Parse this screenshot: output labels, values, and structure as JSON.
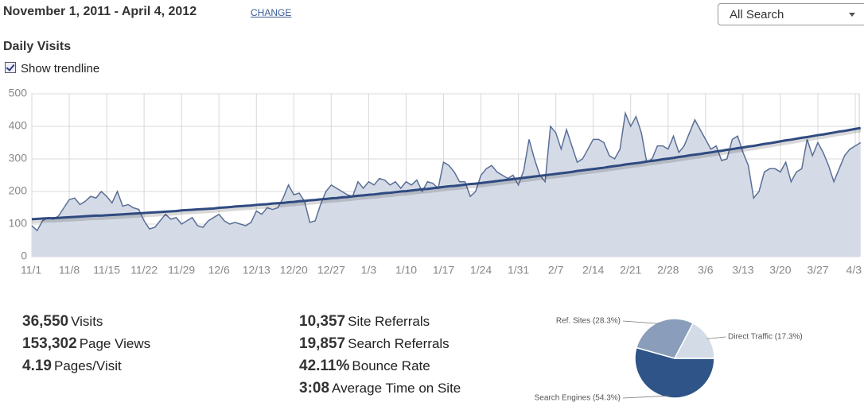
{
  "header": {
    "date_range": "November 1, 2011 - April 4, 2012",
    "change_link": "CHANGE",
    "dropdown": "All Search",
    "section_title": "Daily Visits",
    "trendline_toggle": "Show trendline"
  },
  "stats": {
    "left": [
      {
        "value": "36,550",
        "label": "Visits"
      },
      {
        "value": "153,302",
        "label": "Page Views"
      },
      {
        "value": "4.19",
        "label": "Pages/Visit"
      }
    ],
    "right": [
      {
        "value": "10,357",
        "label": "Site Referrals"
      },
      {
        "value": "19,857",
        "label": "Search Referrals"
      },
      {
        "value": "42.11%",
        "label": "Bounce Rate"
      },
      {
        "value": "3:08",
        "label": "Average Time on Site"
      }
    ]
  },
  "chart_data": [
    {
      "type": "area",
      "categories": [
        "11/1",
        null,
        null,
        null,
        null,
        null,
        null,
        "11/8",
        null,
        null,
        null,
        null,
        null,
        null,
        "11/15",
        null,
        null,
        null,
        null,
        null,
        null,
        "11/22",
        null,
        null,
        null,
        null,
        null,
        null,
        "11/29",
        null,
        null,
        null,
        null,
        null,
        null,
        "12/6",
        null,
        null,
        null,
        null,
        null,
        null,
        "12/13",
        null,
        null,
        null,
        null,
        null,
        null,
        "12/20",
        null,
        null,
        null,
        null,
        null,
        null,
        "12/27",
        null,
        null,
        null,
        null,
        null,
        null,
        "1/3",
        null,
        null,
        null,
        null,
        null,
        null,
        "1/10",
        null,
        null,
        null,
        null,
        null,
        null,
        "1/17",
        null,
        null,
        null,
        null,
        null,
        null,
        "1/24",
        null,
        null,
        null,
        null,
        null,
        null,
        "1/31",
        null,
        null,
        null,
        null,
        null,
        null,
        "2/7",
        null,
        null,
        null,
        null,
        null,
        null,
        "2/14",
        null,
        null,
        null,
        null,
        null,
        null,
        "2/21",
        null,
        null,
        null,
        null,
        null,
        null,
        "2/28",
        null,
        null,
        null,
        null,
        null,
        null,
        "3/6",
        null,
        null,
        null,
        null,
        null,
        null,
        "3/13",
        null,
        null,
        null,
        null,
        null,
        null,
        "3/20",
        null,
        null,
        null,
        null,
        null,
        null,
        "3/27",
        null,
        null,
        null,
        null,
        null,
        null,
        "4/3",
        null
      ],
      "series": [
        {
          "name": "Visits",
          "color": "#5a6f97",
          "fill": "#d5dbe6",
          "values": [
            95,
            80,
            110,
            120,
            115,
            125,
            150,
            175,
            180,
            160,
            170,
            185,
            180,
            200,
            185,
            165,
            200,
            155,
            160,
            150,
            145,
            110,
            85,
            90,
            110,
            130,
            115,
            120,
            100,
            110,
            120,
            95,
            90,
            110,
            120,
            130,
            110,
            100,
            105,
            100,
            95,
            105,
            140,
            130,
            150,
            145,
            150,
            180,
            220,
            190,
            195,
            170,
            105,
            110,
            160,
            200,
            220,
            210,
            200,
            190,
            185,
            230,
            210,
            230,
            220,
            240,
            235,
            220,
            230,
            210,
            230,
            220,
            235,
            200,
            230,
            225,
            210,
            290,
            280,
            260,
            230,
            230,
            185,
            200,
            250,
            270,
            280,
            260,
            250,
            240,
            250,
            220,
            265,
            360,
            300,
            250,
            230,
            400,
            380,
            330,
            390,
            340,
            290,
            300,
            330,
            360,
            360,
            350,
            310,
            300,
            330,
            440,
            400,
            430,
            380,
            290,
            300,
            340,
            340,
            330,
            370,
            320,
            340,
            380,
            420,
            390,
            360,
            330,
            340,
            295,
            300,
            360,
            370,
            320,
            280,
            180,
            200,
            260,
            270,
            270,
            260,
            290,
            230,
            260,
            270,
            360,
            310,
            350,
            320,
            280,
            230,
            270,
            310,
            330,
            340,
            350
          ]
        },
        {
          "name": "Trendline",
          "color": "#2f4a80",
          "values": [
            115,
            116,
            117,
            118,
            118,
            119,
            120,
            121,
            122,
            123,
            124,
            125,
            126,
            126,
            127,
            128,
            129,
            130,
            131,
            132,
            133,
            134,
            135,
            136,
            137,
            138,
            139,
            140,
            142,
            143,
            144,
            145,
            146,
            147,
            148,
            150,
            151,
            152,
            154,
            155,
            156,
            157,
            159,
            160,
            161,
            163,
            164,
            165,
            167,
            168,
            170,
            171,
            173,
            174,
            176,
            177,
            179,
            180,
            182,
            183,
            185,
            187,
            188,
            190,
            191,
            193,
            195,
            196,
            198,
            200,
            201,
            203,
            205,
            207,
            208,
            210,
            212,
            214,
            216,
            217,
            219,
            221,
            223,
            224,
            226,
            228,
            230,
            232,
            234,
            236,
            238,
            240,
            242,
            244,
            246,
            248,
            250,
            252,
            254,
            256,
            258,
            260,
            263,
            265,
            267,
            269,
            271,
            273,
            276,
            278,
            280,
            283,
            285,
            287,
            289,
            292,
            294,
            296,
            299,
            301,
            303,
            306,
            308,
            311,
            313,
            315,
            318,
            320,
            323,
            325,
            328,
            330,
            333,
            335,
            338,
            340,
            343,
            346,
            348,
            351,
            354,
            357,
            359,
            362,
            365,
            367,
            370,
            373,
            375,
            378,
            381,
            384,
            386,
            389,
            392,
            395
          ]
        }
      ],
      "ylim": [
        0,
        500
      ],
      "yticks": [
        0,
        100,
        200,
        300,
        400,
        500
      ],
      "grid": true
    },
    {
      "type": "pie",
      "labels": [
        "Search Engines (54.3%)",
        "Ref. Sites (28.3%)",
        "Direct Traffic (17.3%)"
      ],
      "values": [
        54.3,
        28.3,
        17.3
      ],
      "colors": [
        "#2f5488",
        "#8a9dba",
        "#d3dbe7"
      ]
    }
  ]
}
